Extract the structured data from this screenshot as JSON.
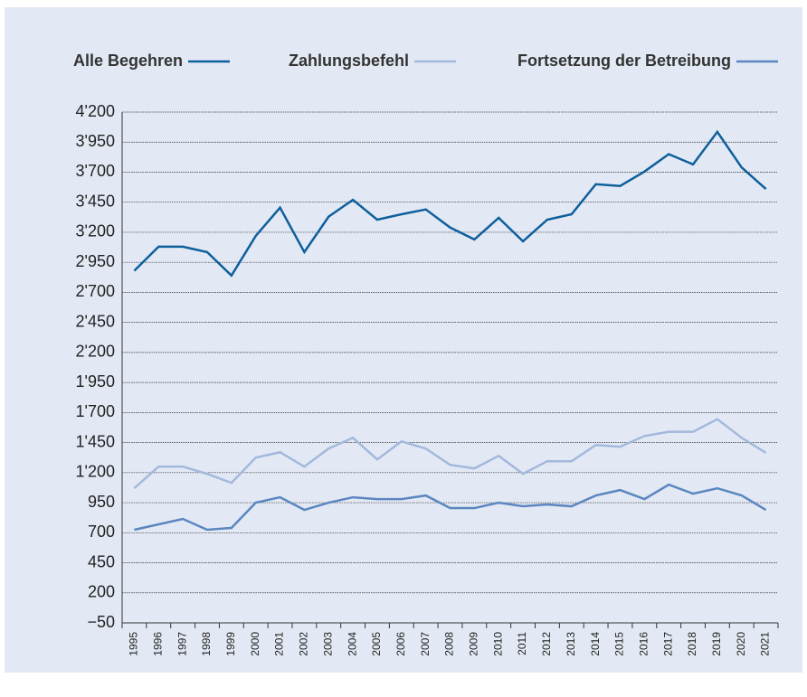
{
  "chart_data": {
    "type": "line",
    "categories": [
      "1995",
      "1996",
      "1997",
      "1998",
      "1999",
      "2000",
      "2001",
      "2002",
      "2003",
      "2004",
      "2005",
      "2006",
      "2007",
      "2008",
      "2009",
      "2010",
      "2011",
      "2012",
      "2013",
      "2014",
      "2015",
      "2016",
      "2017",
      "2018",
      "2019",
      "2020",
      "2021"
    ],
    "series": [
      {
        "name": "Alle Begehren",
        "color": "#0e5f9c",
        "values": [
          2880,
          3080,
          3080,
          3035,
          2840,
          3170,
          3405,
          3035,
          3330,
          3470,
          3305,
          3350,
          3390,
          3240,
          3140,
          3320,
          3125,
          3305,
          3350,
          3600,
          3585,
          3705,
          3850,
          3765,
          4035,
          3740,
          3560
        ]
      },
      {
        "name": "Zahlungsbefehl",
        "color": "#a3b8dc",
        "values": [
          1070,
          1250,
          1250,
          1190,
          1115,
          1325,
          1370,
          1250,
          1400,
          1490,
          1310,
          1460,
          1400,
          1265,
          1235,
          1340,
          1190,
          1295,
          1295,
          1430,
          1415,
          1505,
          1540,
          1540,
          1645,
          1490,
          1365
        ]
      },
      {
        "name": "Fortsetzung der Betreibung",
        "color": "#5b86c0",
        "values": [
          725,
          770,
          815,
          725,
          740,
          950,
          995,
          890,
          950,
          995,
          980,
          980,
          1010,
          905,
          905,
          950,
          920,
          935,
          920,
          1010,
          1055,
          980,
          1100,
          1025,
          1070,
          1010,
          890
        ]
      }
    ],
    "ylim": [
      -50,
      4200
    ],
    "yticks": [
      {
        "value": -50,
        "label": "−50"
      },
      200,
      450,
      700,
      950,
      {
        "value": 1200,
        "label": "1'200"
      },
      {
        "value": 1450,
        "label": "1'450"
      },
      {
        "value": 1700,
        "label": "1'700"
      },
      {
        "value": 1950,
        "label": "1'950"
      },
      {
        "value": 2200,
        "label": "2'200"
      },
      {
        "value": 2450,
        "label": "2'450"
      },
      {
        "value": 2700,
        "label": "2'700"
      },
      {
        "value": 2950,
        "label": "2'950"
      },
      {
        "value": 3200,
        "label": "3'200"
      },
      {
        "value": 3450,
        "label": "3'450"
      },
      {
        "value": 3700,
        "label": "3'700"
      },
      {
        "value": 3950,
        "label": "3'950"
      },
      {
        "value": 4200,
        "label": "4'200"
      }
    ],
    "grid": true
  }
}
